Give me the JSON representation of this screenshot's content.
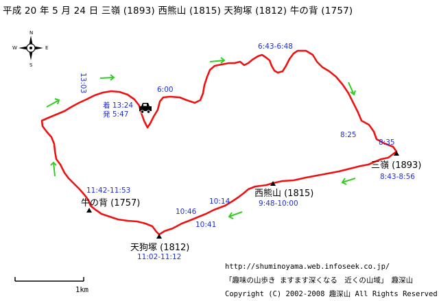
{
  "header": {
    "title": "平成 20 年 5 月 24 日 三嶺 (1893) 西熊山 (1815) 天狗塚 (1812) 牛の背 (1757)"
  },
  "compass": {
    "n": "N",
    "s": "S",
    "e": "E",
    "w": "W"
  },
  "parking": {
    "arrive": "着 13:24",
    "depart": "発  5:47"
  },
  "times": {
    "t1303": "13:03",
    "t600": "6:00",
    "t643": "6:43-6:48",
    "t825": "8:25",
    "t835": "8:35",
    "t843": "8:43-8:56",
    "t948": "9:48-10:00",
    "t1014": "10:14",
    "t1041": "10:41",
    "t1046": "10:46",
    "t1102": "11:02-11:12",
    "t1142": "11:42-11:53"
  },
  "peaks": {
    "sanrei": "三嶺 (1893)",
    "nishikuma": "西熊山 (1815)",
    "tenguzuka": "天狗塚 (1812)",
    "ushinose": "牛の背 (1757)"
  },
  "footer": {
    "url": "http://shuminoyama.web.infoseek.co.jp/",
    "site": "「趣味の山歩き ますます深くなる　近くの山域」　趣深山",
    "copyright": "Copyright (C) 2002-2008 趣深山 All Rights Reserved"
  },
  "scale": {
    "label": "1km"
  },
  "colors": {
    "route": "#ee1111",
    "arrow": "#33cc22",
    "time": "#1d2fd6"
  }
}
